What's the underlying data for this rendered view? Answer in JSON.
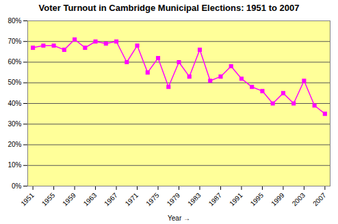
{
  "chart_data": {
    "type": "line",
    "title": "Voter Turnout in Cambridge Municipal Elections: 1951 to 2007",
    "x_label": "Year",
    "x": [
      1951,
      1953,
      1955,
      1957,
      1959,
      1961,
      1963,
      1965,
      1967,
      1969,
      1971,
      1973,
      1975,
      1977,
      1979,
      1981,
      1983,
      1985,
      1987,
      1989,
      1991,
      1993,
      1995,
      1997,
      1999,
      2001,
      2003,
      2005,
      2007
    ],
    "values": [
      67,
      68,
      68,
      66,
      71,
      67,
      70,
      69,
      70,
      60,
      68,
      55,
      62,
      48,
      60,
      53,
      66,
      51,
      53,
      58,
      52,
      48,
      46,
      40,
      45,
      40,
      51,
      39,
      35
    ],
    "color": "#ff00ff",
    "marker": "square",
    "line_style": "solid",
    "xlim": [
      1950,
      2008
    ],
    "xticks": [
      1951,
      1955,
      1959,
      1963,
      1967,
      1971,
      1975,
      1979,
      1983,
      1987,
      1991,
      1995,
      1999,
      2003,
      2007
    ],
    "ylim": [
      0,
      80
    ],
    "yticks": [
      {
        "value": 0,
        "label": "0%"
      },
      {
        "value": 10,
        "label": "10%"
      },
      {
        "value": 20,
        "label": "20%"
      },
      {
        "value": 30,
        "label": "30%"
      },
      {
        "value": 40,
        "label": "40%"
      },
      {
        "value": 50,
        "label": "50%"
      },
      {
        "value": 60,
        "label": "60%"
      },
      {
        "value": 70,
        "label": "70%"
      },
      {
        "value": 80,
        "label": "80%"
      }
    ],
    "grid": true
  }
}
